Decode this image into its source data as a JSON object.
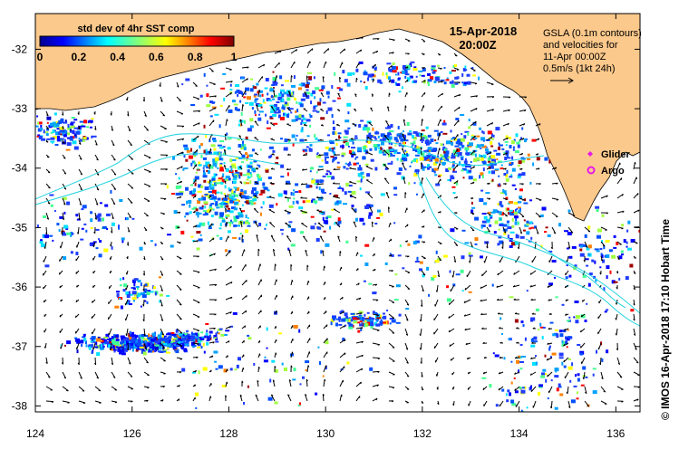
{
  "header": {
    "date": "15-Apr-2018",
    "time": "20:00Z"
  },
  "info": {
    "line1": "GSLA (0.1m contours)",
    "line2": "and velocities for",
    "line3": "11-Apr 00:00Z",
    "line4": "0.5m/s (1kt 24h)"
  },
  "colorbar": {
    "title": "std dev of 4hr SST comp",
    "ticks": [
      "0",
      "0.2",
      "0.4",
      "0.6",
      "0.8",
      "1"
    ],
    "min": 0,
    "max": 1
  },
  "legend": {
    "glider": "Glider",
    "argo": "Argo"
  },
  "axes": {
    "x_ticks": [
      "124",
      "126",
      "128",
      "130",
      "132",
      "134",
      "136"
    ],
    "y_ticks": [
      "-32",
      "-33",
      "-34",
      "-35",
      "-36",
      "-37",
      "-38"
    ],
    "lon_range": [
      124,
      136.5
    ],
    "lat_range": [
      -38.1,
      -31.4
    ]
  },
  "credit": "©  IMOS 16-Apr-2018 17:10 Hobart Time",
  "colors": {
    "land": "#fcc98c",
    "contour": "#22d3e0",
    "ocean": "#ffffff",
    "glider": "#e619e6",
    "argo": "#e619e6"
  }
}
